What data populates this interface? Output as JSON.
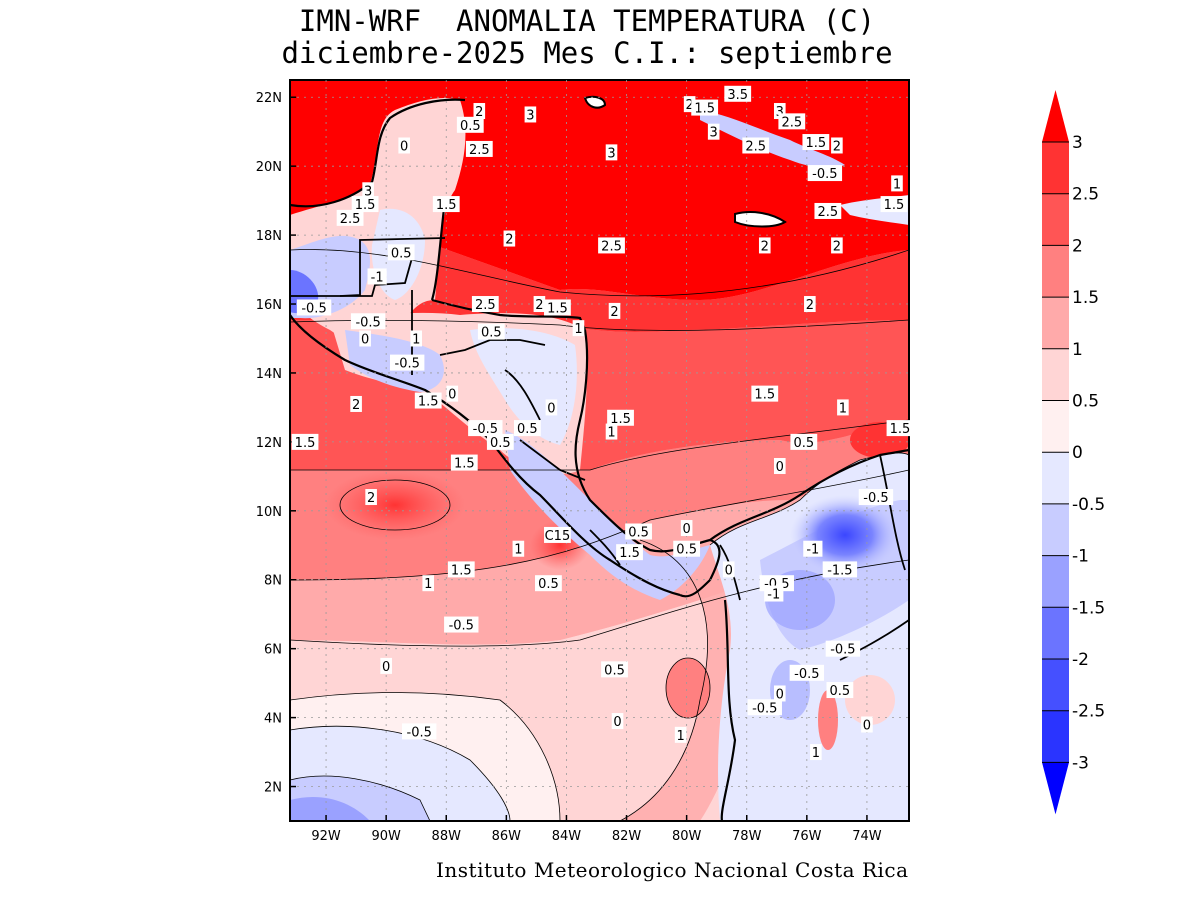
{
  "title": {
    "line1": "IMN-WRF  ANOMALIA TEMPERATURA (C)",
    "line2": "diciembre-2025 Mes C.I.: septiembre"
  },
  "footer": "Instituto Meteorologico Nacional Costa Rica",
  "axes": {
    "lat_ticks": [
      "22N",
      "20N",
      "18N",
      "16N",
      "14N",
      "12N",
      "10N",
      "8N",
      "6N",
      "4N",
      "2N"
    ],
    "lon_ticks": [
      "92W",
      "90W",
      "88W",
      "86W",
      "84W",
      "82W",
      "80W",
      "78W",
      "76W",
      "74W"
    ]
  },
  "colorbar": {
    "labels": [
      "3",
      "2.5",
      "2",
      "1.5",
      "1",
      "0.5",
      "0",
      "-0.5",
      "-1",
      "-1.5",
      "-2",
      "-2.5",
      "-3"
    ],
    "colors": [
      "#ff0000",
      "#ff3333",
      "#ff5555",
      "#ff8080",
      "#ffaaaa",
      "#ffd5d5",
      "#fff0f0",
      "#e5e8ff",
      "#c8ccff",
      "#9aa1ff",
      "#6b74ff",
      "#4550ff",
      "#2a34ff",
      "#0000ff"
    ]
  },
  "contour_labels": [
    {
      "text": "2",
      "lon": -86.9,
      "lat": 21.6
    },
    {
      "text": "0.5",
      "lon": -87.2,
      "lat": 21.2
    },
    {
      "text": "3",
      "lon": -85.2,
      "lat": 21.5
    },
    {
      "text": "0",
      "lon": -89.4,
      "lat": 20.6
    },
    {
      "text": "2.5",
      "lon": -86.9,
      "lat": 20.5
    },
    {
      "text": "3",
      "lon": -82.5,
      "lat": 20.4
    },
    {
      "text": "2",
      "lon": -79.9,
      "lat": 21.8
    },
    {
      "text": "1.5",
      "lon": -79.4,
      "lat": 21.7
    },
    {
      "text": "3",
      "lon": -79.1,
      "lat": 21.0
    },
    {
      "text": "3.5",
      "lon": -78.3,
      "lat": 22.1
    },
    {
      "text": "3",
      "lon": -76.9,
      "lat": 21.6
    },
    {
      "text": "2.5",
      "lon": -76.5,
      "lat": 21.3
    },
    {
      "text": "2.5",
      "lon": -77.7,
      "lat": 20.6
    },
    {
      "text": "1.5",
      "lon": -75.7,
      "lat": 20.7
    },
    {
      "text": "2",
      "lon": -75.0,
      "lat": 20.6
    },
    {
      "text": "-0.5",
      "lon": -75.4,
      "lat": 19.8
    },
    {
      "text": "1",
      "lon": -73.0,
      "lat": 19.5
    },
    {
      "text": "1.5",
      "lon": -73.1,
      "lat": 18.9
    },
    {
      "text": "2.5",
      "lon": -75.3,
      "lat": 18.7
    },
    {
      "text": "3",
      "lon": -90.6,
      "lat": 19.3
    },
    {
      "text": "1.5",
      "lon": -90.7,
      "lat": 18.9
    },
    {
      "text": "2.5",
      "lon": -91.2,
      "lat": 18.5
    },
    {
      "text": "1.5",
      "lon": -88.0,
      "lat": 18.9
    },
    {
      "text": "2",
      "lon": -85.9,
      "lat": 17.9
    },
    {
      "text": "2.5",
      "lon": -82.5,
      "lat": 17.7
    },
    {
      "text": "0.5",
      "lon": -89.5,
      "lat": 17.5
    },
    {
      "text": "-1",
      "lon": -90.3,
      "lat": 16.8
    },
    {
      "text": "2",
      "lon": -77.4,
      "lat": 17.7
    },
    {
      "text": "2",
      "lon": -75.0,
      "lat": 17.7
    },
    {
      "text": "2",
      "lon": -75.9,
      "lat": 16.0
    },
    {
      "text": "2.5",
      "lon": -86.7,
      "lat": 16.0
    },
    {
      "text": "2",
      "lon": -84.9,
      "lat": 16.0
    },
    {
      "text": "1.5",
      "lon": -84.3,
      "lat": 15.9
    },
    {
      "text": "1",
      "lon": -83.6,
      "lat": 15.3
    },
    {
      "text": "2",
      "lon": -82.4,
      "lat": 15.8
    },
    {
      "text": "-0.5",
      "lon": -92.4,
      "lat": 15.9
    },
    {
      "text": "-0.5",
      "lon": -90.6,
      "lat": 15.5
    },
    {
      "text": "0",
      "lon": -90.7,
      "lat": 15.0
    },
    {
      "text": "1",
      "lon": -89.0,
      "lat": 15.0
    },
    {
      "text": "0.5",
      "lon": -86.5,
      "lat": 15.2
    },
    {
      "text": "-0.5",
      "lon": -89.3,
      "lat": 14.3
    },
    {
      "text": "2",
      "lon": -91.0,
      "lat": 13.1
    },
    {
      "text": "1.5",
      "lon": -88.6,
      "lat": 13.2
    },
    {
      "text": "0",
      "lon": -87.8,
      "lat": 13.4
    },
    {
      "text": "1.5",
      "lon": -77.4,
      "lat": 13.4
    },
    {
      "text": "1",
      "lon": -74.8,
      "lat": 13.0
    },
    {
      "text": "-0.5",
      "lon": -86.7,
      "lat": 12.4
    },
    {
      "text": "0.5",
      "lon": -86.2,
      "lat": 12.0
    },
    {
      "text": "0.5",
      "lon": -85.3,
      "lat": 12.4
    },
    {
      "text": "0",
      "lon": -84.5,
      "lat": 13.0
    },
    {
      "text": "1.5",
      "lon": -82.2,
      "lat": 12.7
    },
    {
      "text": "1",
      "lon": -82.5,
      "lat": 12.3
    },
    {
      "text": "1.5",
      "lon": -72.9,
      "lat": 12.4
    },
    {
      "text": "1.5",
      "lon": -92.7,
      "lat": 12.0
    },
    {
      "text": "0.5",
      "lon": -76.1,
      "lat": 12.0
    },
    {
      "text": "0",
      "lon": -76.9,
      "lat": 11.3
    },
    {
      "text": "1.5",
      "lon": -87.4,
      "lat": 11.4
    },
    {
      "text": "2",
      "lon": -90.5,
      "lat": 10.4
    },
    {
      "text": "-0.5",
      "lon": -73.7,
      "lat": 10.4
    },
    {
      "text": "0.5",
      "lon": -81.6,
      "lat": 9.4
    },
    {
      "text": "0",
      "lon": -80.0,
      "lat": 9.5
    },
    {
      "text": "C15",
      "lon": -84.3,
      "lat": 9.3
    },
    {
      "text": "1",
      "lon": -85.6,
      "lat": 8.9
    },
    {
      "text": "1.5",
      "lon": -81.9,
      "lat": 8.8
    },
    {
      "text": "0.5",
      "lon": -80.0,
      "lat": 8.9
    },
    {
      "text": "-1",
      "lon": -75.8,
      "lat": 8.9
    },
    {
      "text": "-1.5",
      "lon": -74.9,
      "lat": 8.3
    },
    {
      "text": "1.5",
      "lon": -87.5,
      "lat": 8.3
    },
    {
      "text": "1",
      "lon": -88.6,
      "lat": 7.9
    },
    {
      "text": "0.5",
      "lon": -84.6,
      "lat": 7.9
    },
    {
      "text": "0",
      "lon": -78.6,
      "lat": 8.3
    },
    {
      "text": "-0.5",
      "lon": -77.0,
      "lat": 7.9
    },
    {
      "text": "-1",
      "lon": -77.1,
      "lat": 7.6
    },
    {
      "text": "-0.5",
      "lon": -87.5,
      "lat": 6.7
    },
    {
      "text": "-0.5",
      "lon": -74.8,
      "lat": 6.0
    },
    {
      "text": "0",
      "lon": -90.0,
      "lat": 5.5
    },
    {
      "text": "0.5",
      "lon": -82.4,
      "lat": 5.4
    },
    {
      "text": "-0.5",
      "lon": -76.0,
      "lat": 5.3
    },
    {
      "text": "0",
      "lon": -76.9,
      "lat": 4.7
    },
    {
      "text": "0.5",
      "lon": -74.9,
      "lat": 4.8
    },
    {
      "text": "-0.5",
      "lon": -77.4,
      "lat": 4.3
    },
    {
      "text": "0",
      "lon": -82.3,
      "lat": 3.9
    },
    {
      "text": "1",
      "lon": -80.2,
      "lat": 3.5
    },
    {
      "text": "0",
      "lon": -74.0,
      "lat": 3.8
    },
    {
      "text": "-0.5",
      "lon": -88.9,
      "lat": 3.6
    },
    {
      "text": "1",
      "lon": -75.7,
      "lat": 3.0
    }
  ]
}
